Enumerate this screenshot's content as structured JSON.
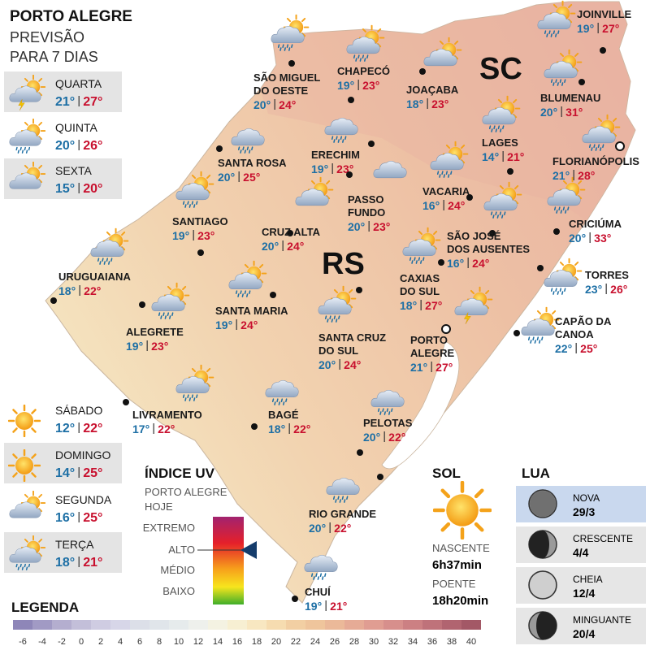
{
  "header": {
    "title": "PORTO ALEGRE",
    "subtitle": [
      "PREVISÃO",
      "PARA 7 DIAS"
    ]
  },
  "forecast": [
    {
      "day": "QUARTA",
      "min": "21°",
      "max": "27°"
    },
    {
      "day": "QUINTA",
      "min": "20°",
      "max": "26°"
    },
    {
      "day": "SEXTA",
      "min": "15°",
      "max": "20°"
    },
    {
      "day": "SÁBADO",
      "min": "12°",
      "max": "22°"
    },
    {
      "day": "DOMINGO",
      "min": "14°",
      "max": "25°"
    },
    {
      "day": "SEGUNDA",
      "min": "16°",
      "max": "25°"
    },
    {
      "day": "TERÇA",
      "min": "18°",
      "max": "21°"
    }
  ],
  "states": [
    "SC",
    "RS"
  ],
  "cities": [
    {
      "name": [
        "SÃO MIGUEL",
        "DO OESTE"
      ],
      "min": "20°",
      "max": "24°"
    },
    {
      "name": [
        "CHAPECÓ"
      ],
      "min": "19°",
      "max": "23°"
    },
    {
      "name": [
        "JOAÇABA"
      ],
      "min": "18°",
      "max": "23°"
    },
    {
      "name": [
        "JOINVILLE"
      ],
      "min": "19°",
      "max": "27°"
    },
    {
      "name": [
        "BLUMENAU"
      ],
      "min": "20°",
      "max": "31°"
    },
    {
      "name": [
        "LAGES"
      ],
      "min": "14°",
      "max": "21°"
    },
    {
      "name": [
        "FLORIANÓPOLIS"
      ],
      "min": "21°",
      "max": "28°"
    },
    {
      "name": [
        "SANTA ROSA"
      ],
      "min": "20°",
      "max": "25°"
    },
    {
      "name": [
        "ERECHIM"
      ],
      "min": "19°",
      "max": "23°"
    },
    {
      "name": [
        "PASSO",
        "FUNDO"
      ],
      "min": "20°",
      "max": "23°"
    },
    {
      "name": [
        "VACARIA"
      ],
      "min": "16°",
      "max": "24°"
    },
    {
      "name": [
        "CRICIÚMA"
      ],
      "min": "20°",
      "max": "33°"
    },
    {
      "name": [
        "SANTIAGO"
      ],
      "min": "19°",
      "max": "23°"
    },
    {
      "name": [
        "CRUZ ALTA"
      ],
      "min": "20°",
      "max": "24°"
    },
    {
      "name": [
        "SÃO JOSÉ",
        "DOS AUSENTES"
      ],
      "min": "16°",
      "max": "24°"
    },
    {
      "name": [
        "URUGUAIANA"
      ],
      "min": "18°",
      "max": "22°"
    },
    {
      "name": [
        "CAXIAS",
        "DO SUL"
      ],
      "min": "18°",
      "max": "27°"
    },
    {
      "name": [
        "TORRES"
      ],
      "min": "23°",
      "max": "26°"
    },
    {
      "name": [
        "ALEGRETE"
      ],
      "min": "19°",
      "max": "23°"
    },
    {
      "name": [
        "SANTA MARIA"
      ],
      "min": "19°",
      "max": "24°"
    },
    {
      "name": [
        "SANTA CRUZ",
        "DO SUL"
      ],
      "min": "20°",
      "max": "24°"
    },
    {
      "name": [
        "PORTO",
        "ALEGRE"
      ],
      "min": "21°",
      "max": "27°"
    },
    {
      "name": [
        "CAPÃO DA",
        "CANOA"
      ],
      "min": "22°",
      "max": "25°"
    },
    {
      "name": [
        "LIVRAMENTO"
      ],
      "min": "17°",
      "max": "22°"
    },
    {
      "name": [
        "BAGÉ"
      ],
      "min": "18°",
      "max": "22°"
    },
    {
      "name": [
        "PELOTAS"
      ],
      "min": "20°",
      "max": "22°"
    },
    {
      "name": [
        "RIO GRANDE"
      ],
      "min": "20°",
      "max": "22°"
    },
    {
      "name": [
        "CHUÍ"
      ],
      "min": "19°",
      "max": "21°"
    }
  ],
  "uv": {
    "title": "ÍNDICE UV",
    "subtitle": [
      "PORTO ALEGRE",
      "HOJE"
    ],
    "levels": [
      "EXTREMO",
      "ALTO",
      "MÉDIO",
      "BAIXO"
    ]
  },
  "sun": {
    "title": "SOL",
    "sunrise_label": "NASCENTE",
    "sunrise": "6h37min",
    "sunset_label": "POENTE",
    "sunset": "18h20min"
  },
  "moon": {
    "title": "LUA",
    "phases": [
      {
        "phase": "NOVA",
        "date": "29/3"
      },
      {
        "phase": "CRESCENTE",
        "date": "4/4"
      },
      {
        "phase": "CHEIA",
        "date": "12/4"
      },
      {
        "phase": "MINGUANTE",
        "date": "20/4"
      }
    ]
  },
  "legend": {
    "title": "LEGENDA",
    "ticks": [
      -6,
      -4,
      -2,
      0,
      2,
      4,
      6,
      8,
      10,
      12,
      14,
      16,
      18,
      20,
      22,
      24,
      26,
      28,
      30,
      32,
      34,
      36,
      38,
      40
    ]
  }
}
